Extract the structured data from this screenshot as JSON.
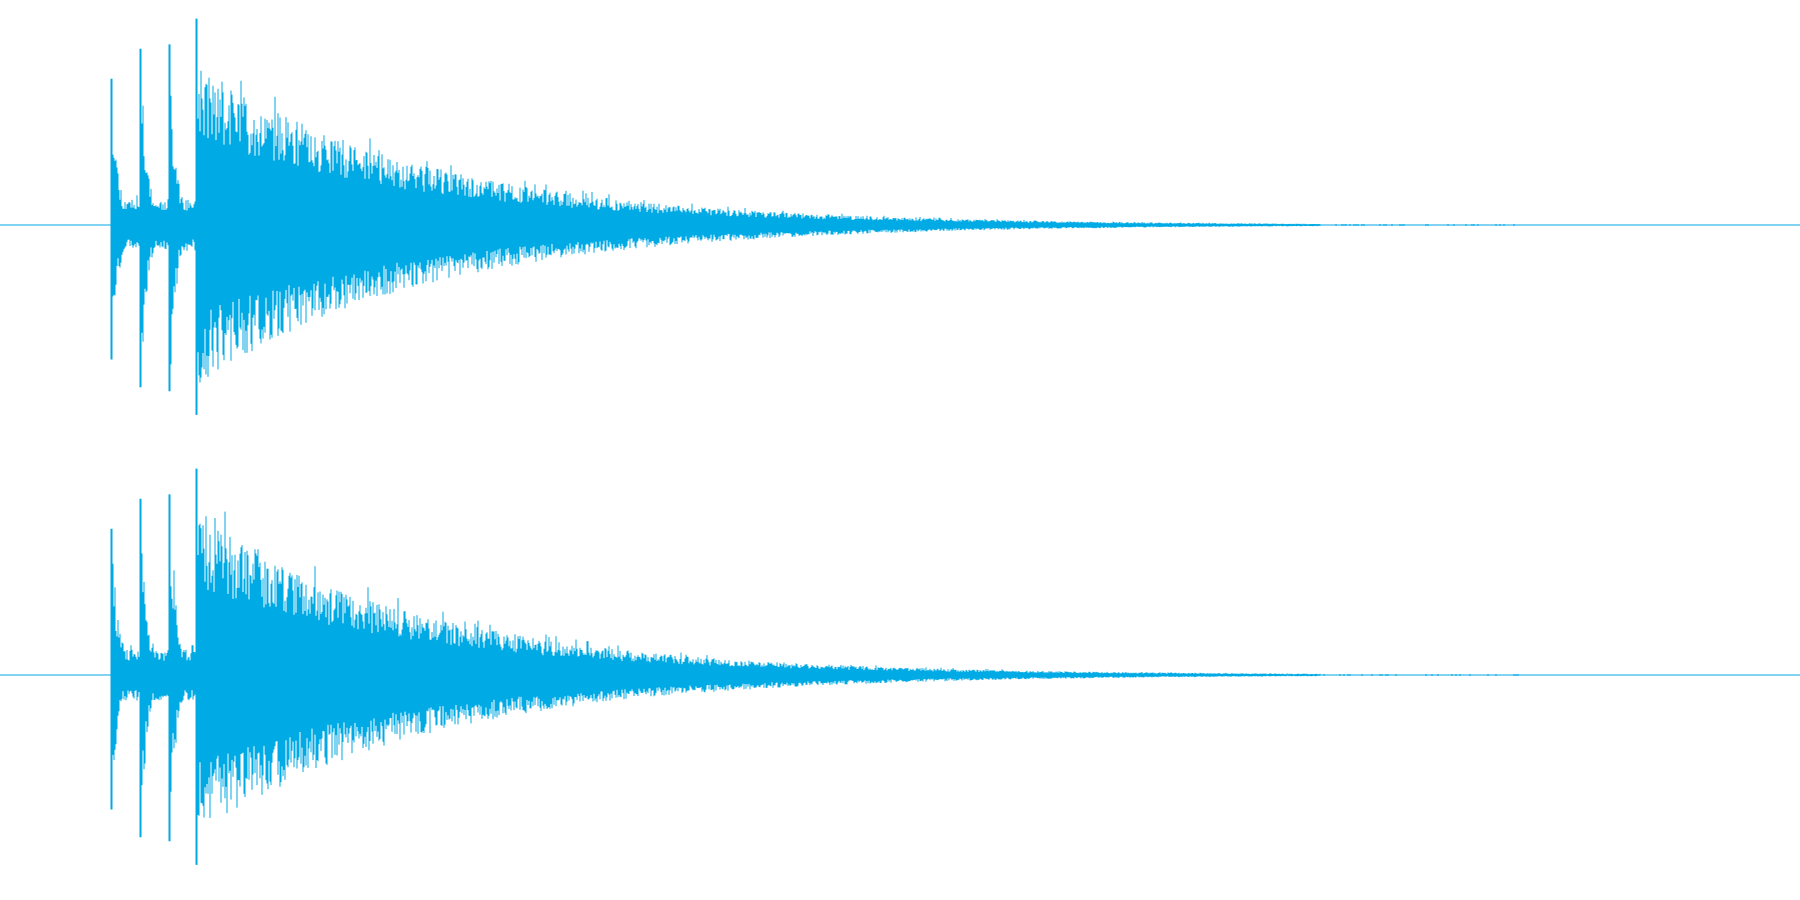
{
  "waveform": {
    "color": "#00aae4",
    "background": "#ffffff",
    "channels": [
      {
        "name": "channel-left"
      },
      {
        "name": "channel-right"
      }
    ],
    "onsets": [
      0.062,
      0.078,
      0.094,
      0.109
    ],
    "onset_peaks": [
      0.68,
      0.82,
      0.84,
      0.96
    ],
    "decay_end": 0.7
  }
}
